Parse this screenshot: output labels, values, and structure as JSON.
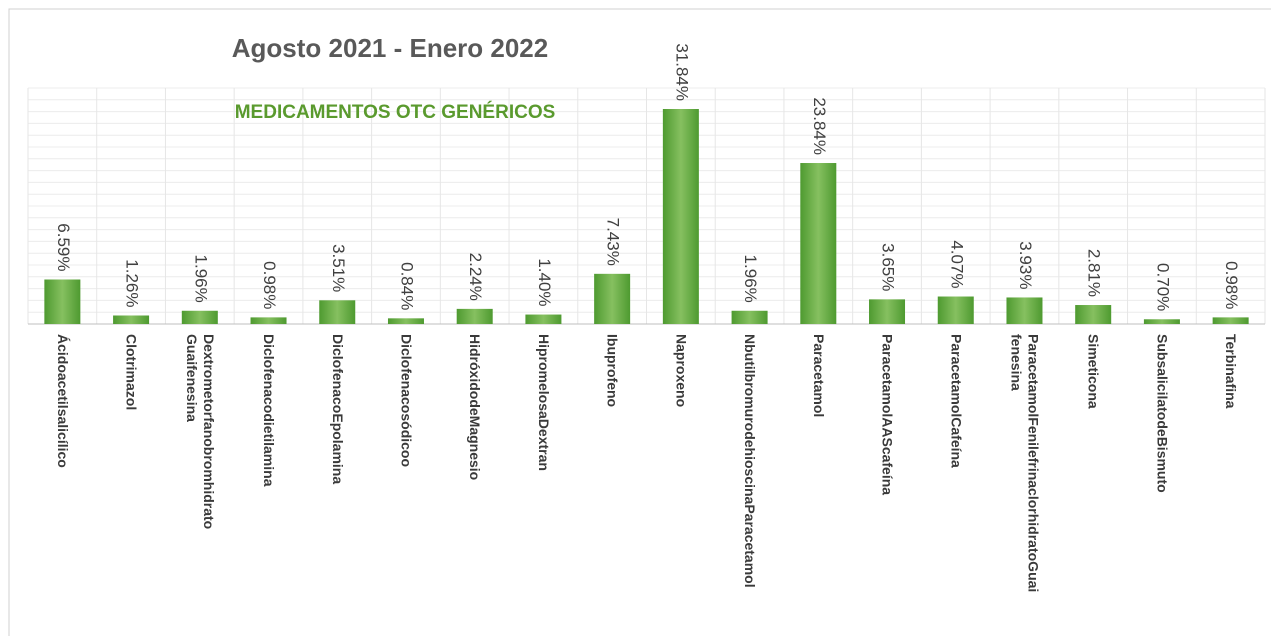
{
  "chart_data": {
    "type": "bar",
    "title": "Agosto  2021 - Enero 2022",
    "subtitle": "MEDICAMENTOS OTC GENÉRICOS",
    "categories": [
      "Ácidoacetilsalicílico",
      "Clotrimazol",
      "Dextrometorfanobromhidrato Guaifenesina",
      "Diclofenacodietilamina",
      "DiclofenacoEpolamina",
      "Diclofenacosódicoo",
      "HidróxidodeMagnesio",
      "HipromelosaDextran",
      "Ibuprofeno",
      "Naproxeno",
      "NbutilbromurodehioscinaParacetamol",
      "Paracetamol",
      "ParacetamolAAScafeína",
      "ParacetamolCafeína",
      "ParacetamolFenilefrinaclorhidratoGuaifenesina",
      "Simeticona",
      "SubsalicilatodeBismuto",
      "Terbinafina"
    ],
    "values": [
      6.59,
      1.26,
      1.96,
      0.98,
      3.51,
      0.84,
      2.24,
      1.4,
      7.43,
      31.84,
      1.96,
      23.84,
      3.65,
      4.07,
      3.93,
      2.81,
      0.7,
      0.98
    ],
    "value_labels": [
      "6.59%",
      "1.26%",
      "1.96%",
      "0.98%",
      "3.51%",
      "0.84%",
      "2.24%",
      "1.40%",
      "7.43%",
      "31.84%",
      "1.96%",
      "23.84%",
      "3.65%",
      "4.07%",
      "3.93%",
      "2.81%",
      "0.70%",
      "0.98%"
    ],
    "color": "#5aa33a"
  }
}
